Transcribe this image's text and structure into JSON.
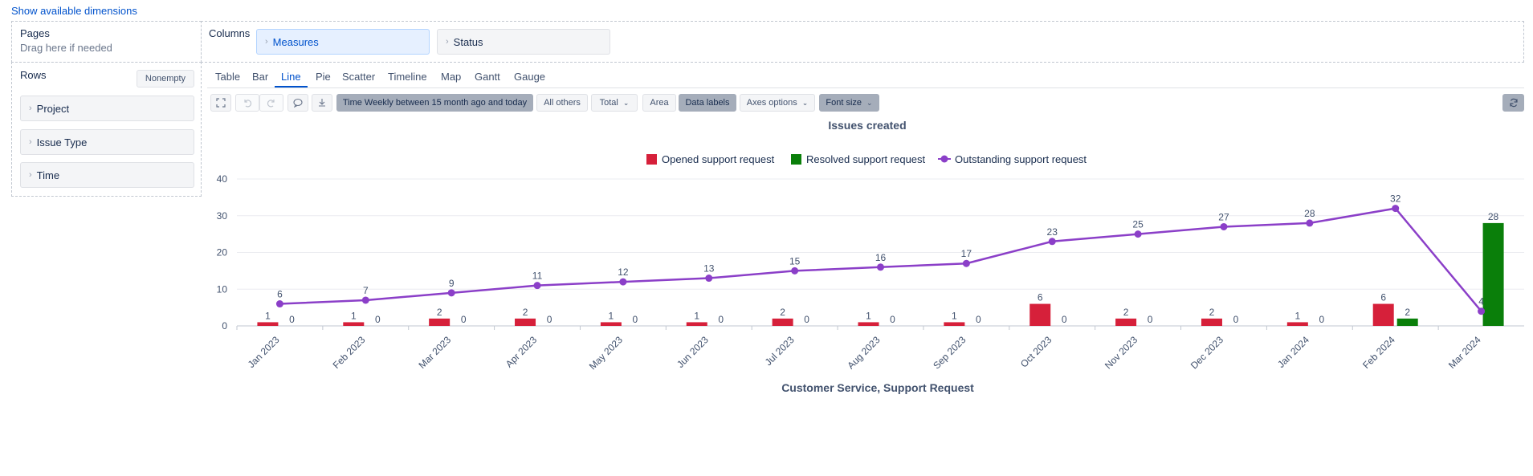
{
  "top_link": "Show available dimensions",
  "pages": {
    "title": "Pages",
    "hint": "Drag here if needed"
  },
  "columns": {
    "title": "Columns",
    "chips": [
      "Measures",
      "Status"
    ]
  },
  "rows": {
    "title": "Rows",
    "nonempty_label": "Nonempty",
    "chips": [
      "Project",
      "Issue Type",
      "Time"
    ]
  },
  "tabs": [
    "Table",
    "Bar",
    "Line",
    "Pie",
    "Scatter",
    "Timeline",
    "Map",
    "Gantt",
    "Gauge"
  ],
  "active_tab": "Line",
  "toolbar": {
    "time_filter": "Time Weekly between 15 month ago and today",
    "all_others": "All others",
    "total": "Total",
    "area": "Area",
    "data_labels": "Data labels",
    "axes_options": "Axes options",
    "font_size": "Font size",
    "icons": [
      "expand-icon",
      "undo-icon",
      "redo-icon",
      "comment-icon",
      "export-icon",
      "refresh-icon"
    ]
  },
  "colors": {
    "opened": "#d6203a",
    "resolved": "#0a7f0a",
    "outstanding": "#8b3fc8",
    "accent": "#0052cc"
  },
  "chart_data": {
    "type": "bar",
    "title": "Issues created",
    "xlabel": "Customer Service, Support Request",
    "ylabel": "",
    "ylim": [
      0,
      40
    ],
    "yticks": [
      0,
      10,
      20,
      30,
      40
    ],
    "legend_position": "top-center",
    "grid": true,
    "categories": [
      "Jan 2023",
      "Feb 2023",
      "Mar 2023",
      "Apr 2023",
      "May 2023",
      "Jun 2023",
      "Jul 2023",
      "Aug 2023",
      "Sep 2023",
      "Oct 2023",
      "Nov 2023",
      "Dec 2023",
      "Jan 2024",
      "Feb 2024",
      "Mar 2024"
    ],
    "series": [
      {
        "name": "Opened support request",
        "type": "bar",
        "values": [
          1,
          1,
          2,
          2,
          1,
          1,
          2,
          1,
          1,
          6,
          2,
          2,
          1,
          6,
          null
        ]
      },
      {
        "name": "Resolved support request",
        "type": "bar",
        "values": [
          0,
          0,
          0,
          0,
          0,
          0,
          0,
          0,
          0,
          0,
          0,
          0,
          0,
          2,
          28
        ]
      },
      {
        "name": "Outstanding support request",
        "type": "line",
        "values": [
          6,
          7,
          9,
          11,
          12,
          13,
          15,
          16,
          17,
          23,
          25,
          27,
          28,
          32,
          4
        ]
      }
    ]
  }
}
